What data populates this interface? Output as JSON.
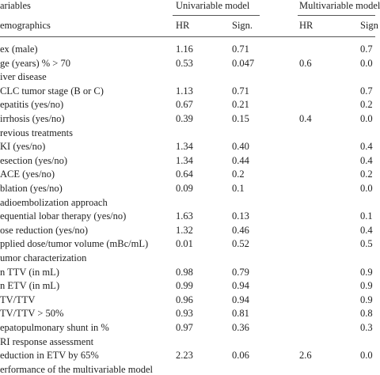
{
  "header": {
    "variables": "ariables",
    "univariable": "Univariable model",
    "multivariable": "Multivariable model",
    "subheader": "emographics",
    "u_hr": "HR",
    "u_sign": "Sign.",
    "m_hr": "HR",
    "m_sign": "Sign"
  },
  "rows": [
    {
      "label": "ex (male)",
      "u_hr": "1.16",
      "u_sign": "0.71",
      "m_sign": "0.7"
    },
    {
      "label": "ge (years) % > 70",
      "u_hr": "0.53",
      "u_sign": "0.047",
      "m_hr": "0.6",
      "m_sign": "0.0"
    },
    {
      "label": "iver disease"
    },
    {
      "label": "CLC tumor stage (B or C)",
      "u_hr": "1.13",
      "u_sign": "0.71",
      "m_sign": "0.7"
    },
    {
      "label": "epatitis (yes/no)",
      "u_hr": "0.67",
      "u_sign": "0.21",
      "m_sign": "0.2"
    },
    {
      "label": "irrhosis (yes/no)",
      "u_hr": "0.39",
      "u_sign": "0.15",
      "m_hr": "0.4",
      "m_sign": "0.0"
    },
    {
      "label": "revious treatments"
    },
    {
      "label": "KI (yes/no)",
      "u_hr": "1.34",
      "u_sign": "0.40",
      "m_sign": "0.4"
    },
    {
      "label": "esection (yes/no)",
      "u_hr": "1.34",
      "u_sign": "0.44",
      "m_sign": "0.4"
    },
    {
      "label": "ACE (yes/no)",
      "u_hr": "0.64",
      "u_sign": "0.2",
      "m_sign": "0.2"
    },
    {
      "label": "blation (yes/no)",
      "u_hr": "0.09",
      "u_sign": "0.1",
      "m_sign": "0.0"
    },
    {
      "label": "adioembolization approach"
    },
    {
      "label": "equential lobar therapy (yes/no)",
      "u_hr": "1.63",
      "u_sign": "0.13",
      "m_sign": "0.1"
    },
    {
      "label": "ose reduction (yes/no)",
      "u_hr": "1.32",
      "u_sign": "0.46",
      "m_sign": "0.4"
    },
    {
      "label": "pplied dose/tumor volume (mBc/mL)",
      "u_hr": "0.01",
      "u_sign": "0.52",
      "m_sign": "0.5"
    },
    {
      "label": "umor characterization"
    },
    {
      "label": "n TTV (in mL)",
      "u_hr": "0.98",
      "u_sign": "0.79",
      "m_sign": "0.9"
    },
    {
      "label": "n ETV (in mL)",
      "u_hr": "0.99",
      "u_sign": "0.94",
      "m_sign": "0.9"
    },
    {
      "label": "TV/TTV",
      "u_hr": "0.96",
      "u_sign": "0.94",
      "m_sign": "0.9"
    },
    {
      "label": "TV/TTV > 50%",
      "u_hr": "0.93",
      "u_sign": "0.81",
      "m_sign": "0.8"
    },
    {
      "label": "epatopulmonary shunt in %",
      "u_hr": "0.97",
      "u_sign": "0.36",
      "m_sign": "0.3"
    },
    {
      "label": "RI response assessment"
    },
    {
      "label": "eduction in ETV by 65%",
      "u_hr": "2.23",
      "u_sign": "0.06",
      "m_hr": "2.6",
      "m_sign": "0.0"
    },
    {
      "label": "erformance of the multivariable model"
    }
  ]
}
